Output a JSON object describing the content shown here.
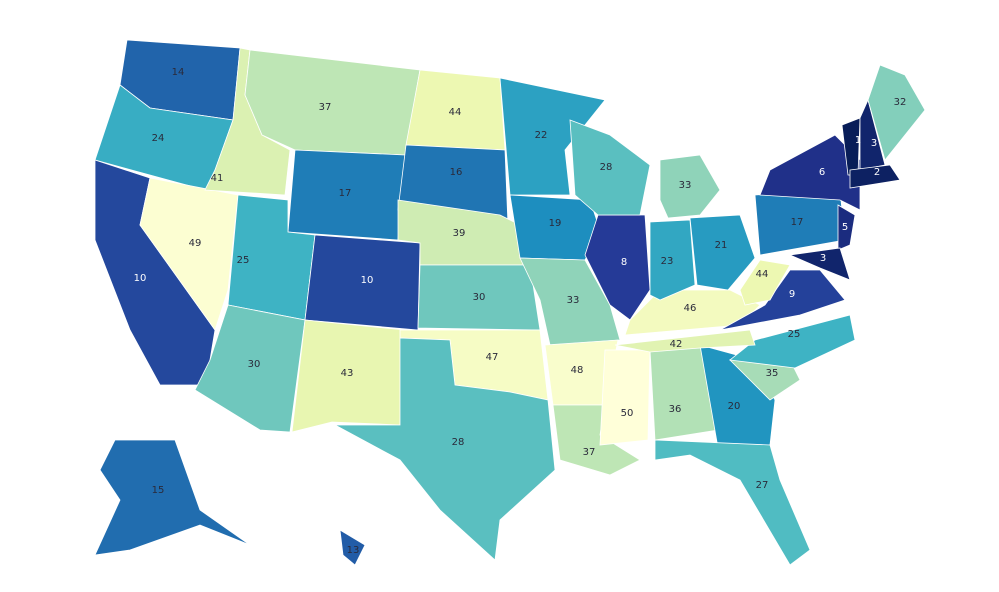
{
  "map": {
    "colorscale": [
      "#081d58",
      "#253494",
      "#225ea8",
      "#1d91c0",
      "#41b6c4",
      "#7fcdbb",
      "#c7e9b4",
      "#edf8b1",
      "#ffffd9"
    ],
    "values": [
      14,
      24,
      10,
      49,
      41,
      37,
      17,
      25,
      10,
      30,
      43,
      44,
      16,
      39,
      30,
      47,
      28,
      22,
      19,
      33,
      48,
      37,
      50,
      36,
      20,
      27,
      35,
      25,
      42,
      46,
      9,
      44,
      21,
      23,
      8,
      28,
      33,
      17,
      6,
      1,
      3,
      32,
      2,
      5,
      3,
      15,
      13
    ]
  }
}
